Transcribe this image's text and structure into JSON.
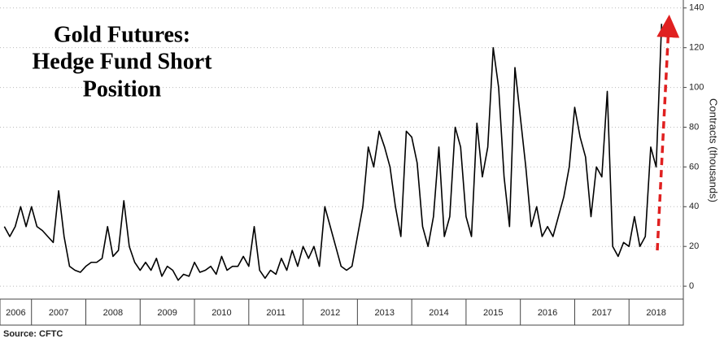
{
  "chart_data": {
    "type": "line",
    "title": [
      "Gold Futures:",
      "Hedge Fund Short",
      "Position"
    ],
    "ylabel": "Contracts (thousands)",
    "source": "Source:  CFTC",
    "color": "#000000",
    "grid": true,
    "xlim": [
      2006.42,
      2019.0
    ],
    "xticks": [
      2006,
      2007,
      2008,
      2009,
      2010,
      2011,
      2012,
      2013,
      2014,
      2015,
      2016,
      2017,
      2018
    ],
    "ylim": [
      -6.5,
      144
    ],
    "yticks": [
      0,
      20,
      40,
      60,
      80,
      100,
      120,
      140
    ],
    "x": [
      2006.5,
      2006.6,
      2006.7,
      2006.8,
      2006.9,
      2007.0,
      2007.1,
      2007.2,
      2007.3,
      2007.4,
      2007.5,
      2007.6,
      2007.7,
      2007.8,
      2007.9,
      2008.0,
      2008.1,
      2008.2,
      2008.3,
      2008.4,
      2008.5,
      2008.6,
      2008.7,
      2008.8,
      2008.9,
      2009.0,
      2009.1,
      2009.2,
      2009.3,
      2009.4,
      2009.5,
      2009.6,
      2009.7,
      2009.8,
      2009.9,
      2010.0,
      2010.1,
      2010.2,
      2010.3,
      2010.4,
      2010.5,
      2010.6,
      2010.7,
      2010.8,
      2010.9,
      2011.0,
      2011.1,
      2011.2,
      2011.3,
      2011.4,
      2011.5,
      2011.6,
      2011.7,
      2011.8,
      2011.9,
      2012.0,
      2012.1,
      2012.2,
      2012.3,
      2012.4,
      2012.5,
      2012.6,
      2012.7,
      2012.8,
      2012.9,
      2013.0,
      2013.1,
      2013.2,
      2013.3,
      2013.4,
      2013.5,
      2013.6,
      2013.7,
      2013.8,
      2013.9,
      2014.0,
      2014.1,
      2014.2,
      2014.3,
      2014.4,
      2014.5,
      2014.6,
      2014.7,
      2014.8,
      2014.9,
      2015.0,
      2015.1,
      2015.2,
      2015.3,
      2015.4,
      2015.5,
      2015.6,
      2015.7,
      2015.8,
      2015.9,
      2016.0,
      2016.1,
      2016.2,
      2016.3,
      2016.4,
      2016.5,
      2016.6,
      2016.7,
      2016.8,
      2016.9,
      2017.0,
      2017.1,
      2017.2,
      2017.3,
      2017.4,
      2017.5,
      2017.6,
      2017.7,
      2017.8,
      2017.9,
      2018.0,
      2018.1,
      2018.2,
      2018.3,
      2018.4,
      2018.5,
      2018.6
    ],
    "values": [
      30,
      25,
      30,
      40,
      30,
      40,
      30,
      28,
      25,
      22,
      48,
      25,
      10,
      8,
      7,
      10,
      12,
      12,
      14,
      30,
      15,
      18,
      43,
      20,
      12,
      8,
      12,
      8,
      14,
      5,
      10,
      8,
      3,
      6,
      5,
      12,
      7,
      8,
      10,
      6,
      15,
      8,
      10,
      10,
      15,
      10,
      30,
      8,
      4,
      8,
      6,
      14,
      8,
      18,
      10,
      20,
      14,
      20,
      10,
      40,
      30,
      20,
      10,
      8,
      10,
      25,
      40,
      70,
      60,
      78,
      70,
      60,
      40,
      25,
      78,
      75,
      62,
      30,
      20,
      35,
      70,
      25,
      35,
      80,
      70,
      35,
      25,
      82,
      55,
      70,
      120,
      100,
      55,
      30,
      110,
      85,
      60,
      30,
      40,
      25,
      30,
      25,
      35,
      45,
      60,
      90,
      75,
      65,
      35,
      60,
      55,
      98,
      20,
      15,
      22,
      20,
      35,
      20,
      25,
      70,
      60,
      132
    ]
  }
}
